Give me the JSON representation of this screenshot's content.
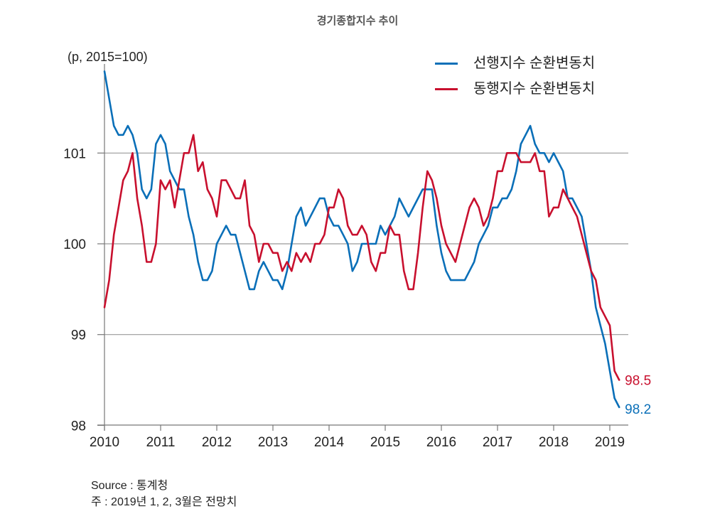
{
  "chart_data": {
    "type": "line",
    "title": "경기종합지수 추이",
    "ylabel": "(p, 2015=100)",
    "xlabel": "",
    "ylim": [
      98,
      101.9
    ],
    "yticks": [
      98,
      99,
      100,
      101
    ],
    "xticks": [
      "2010",
      "2011",
      "2012",
      "2013",
      "2014",
      "2015",
      "2016",
      "2017",
      "2018",
      "2019"
    ],
    "x_range": [
      "2010-01",
      "2019-04"
    ],
    "grid": "horizontal",
    "legend_position": "top-right",
    "frequency": "monthly",
    "start": "2010-01",
    "series": [
      {
        "name": "선행지수 순환변동치",
        "color": "#0a6fb8",
        "end_label": "98.2",
        "values": [
          101.9,
          101.6,
          101.3,
          101.2,
          101.2,
          101.3,
          101.2,
          101.0,
          100.6,
          100.5,
          100.6,
          101.1,
          101.2,
          101.1,
          100.8,
          100.7,
          100.6,
          100.6,
          100.3,
          100.1,
          99.8,
          99.6,
          99.6,
          99.7,
          100.0,
          100.1,
          100.2,
          100.1,
          100.1,
          99.9,
          99.7,
          99.5,
          99.5,
          99.7,
          99.8,
          99.7,
          99.6,
          99.6,
          99.5,
          99.7,
          100.0,
          100.3,
          100.4,
          100.2,
          100.3,
          100.4,
          100.5,
          100.5,
          100.3,
          100.2,
          100.2,
          100.1,
          100.0,
          99.7,
          99.8,
          100.0,
          100.0,
          100.0,
          100.0,
          100.2,
          100.1,
          100.2,
          100.3,
          100.5,
          100.4,
          100.3,
          100.4,
          100.5,
          100.6,
          100.6,
          100.6,
          100.2,
          99.9,
          99.7,
          99.6,
          99.6,
          99.6,
          99.6,
          99.7,
          99.8,
          100.0,
          100.1,
          100.2,
          100.4,
          100.4,
          100.5,
          100.5,
          100.6,
          100.8,
          101.1,
          101.2,
          101.3,
          101.1,
          101.0,
          101.0,
          100.9,
          101.0,
          100.9,
          100.8,
          100.5,
          100.5,
          100.4,
          100.3,
          100.0,
          99.7,
          99.3,
          99.1,
          98.9,
          98.6,
          98.3,
          98.2
        ]
      },
      {
        "name": "동행지수 순환변동치",
        "color": "#c8102e",
        "end_label": "98.5",
        "values": [
          99.3,
          99.6,
          100.1,
          100.4,
          100.7,
          100.8,
          101.0,
          100.5,
          100.2,
          99.8,
          99.8,
          100.0,
          100.7,
          100.6,
          100.7,
          100.4,
          100.7,
          101.0,
          101.0,
          101.2,
          100.8,
          100.9,
          100.6,
          100.5,
          100.3,
          100.7,
          100.7,
          100.6,
          100.5,
          100.5,
          100.7,
          100.2,
          100.1,
          99.8,
          100.0,
          100.0,
          99.9,
          99.9,
          99.7,
          99.8,
          99.7,
          99.9,
          99.8,
          99.9,
          99.8,
          100.0,
          100.0,
          100.1,
          100.4,
          100.4,
          100.6,
          100.5,
          100.2,
          100.1,
          100.1,
          100.2,
          100.1,
          99.8,
          99.7,
          99.9,
          99.9,
          100.2,
          100.1,
          100.1,
          99.7,
          99.5,
          99.5,
          99.9,
          100.4,
          100.8,
          100.7,
          100.5,
          100.2,
          100.0,
          99.9,
          99.8,
          100.0,
          100.2,
          100.4,
          100.5,
          100.4,
          100.2,
          100.3,
          100.5,
          100.8,
          100.8,
          101.0,
          101.0,
          101.0,
          100.9,
          100.9,
          100.9,
          101.0,
          100.8,
          100.8,
          100.3,
          100.4,
          100.4,
          100.6,
          100.5,
          100.4,
          100.3,
          100.1,
          99.9,
          99.7,
          99.6,
          99.3,
          99.2,
          99.1,
          98.6,
          98.5
        ]
      }
    ]
  },
  "footer": {
    "source": "Source : 통계청",
    "note": "주 : 2019년 1, 2, 3월은 전망치"
  }
}
